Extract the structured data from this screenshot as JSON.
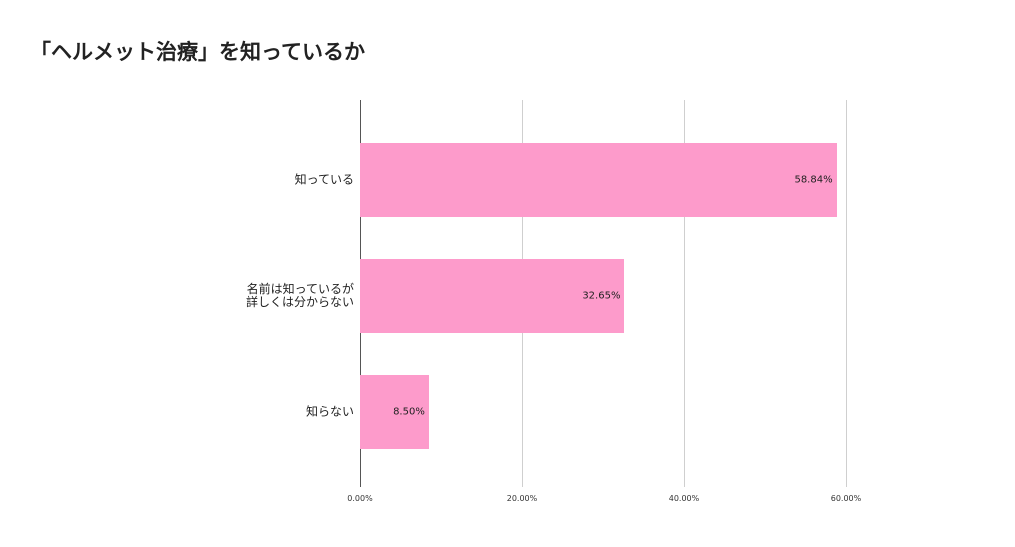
{
  "chart_data": {
    "type": "hbar",
    "title": "「ヘルメット治療」を知っているか",
    "categories": [
      "知っている",
      "名前は知っているが\n詳しくは分からない",
      "知らない"
    ],
    "values": [
      58.84,
      32.65,
      8.5
    ],
    "value_labels": [
      "58.84%",
      "32.65%",
      "8.50%"
    ],
    "color": "#fd9bcb",
    "xlim": [
      0,
      60
    ],
    "xticks": [
      {
        "value": 0,
        "label": "0.00%"
      },
      {
        "value": 20,
        "label": "20.00%"
      },
      {
        "value": 40,
        "label": "40.00%"
      },
      {
        "value": 60,
        "label": "60.00%"
      }
    ],
    "grid": true
  }
}
